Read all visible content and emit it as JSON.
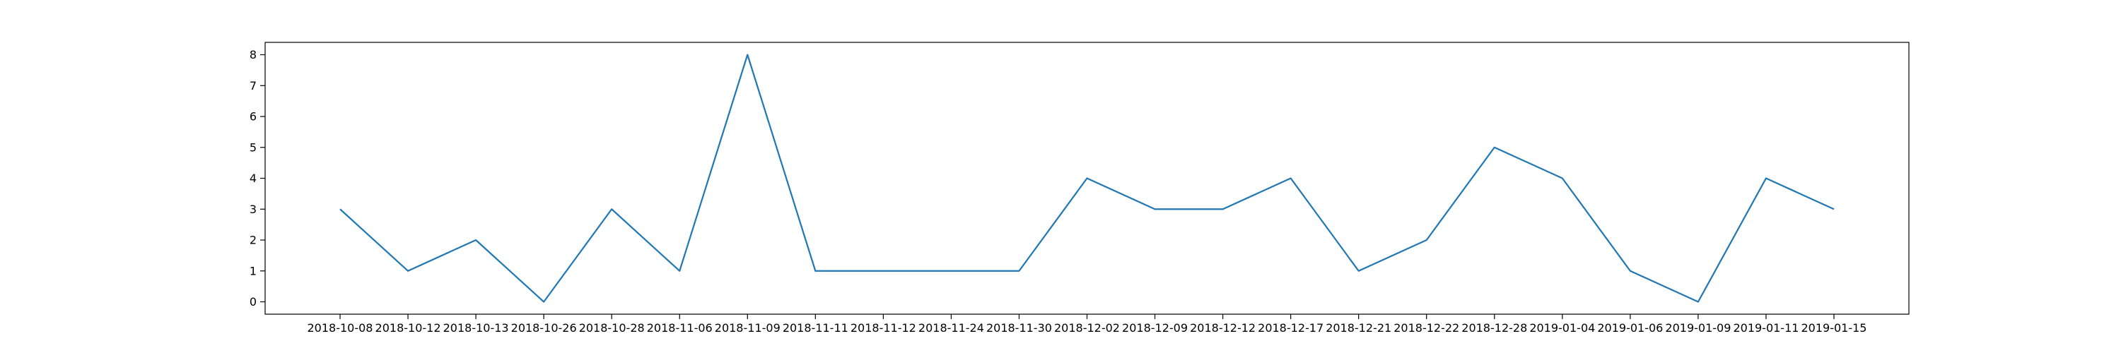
{
  "chart_data": {
    "type": "line",
    "title": "",
    "xlabel": "",
    "ylabel": "",
    "categories": [
      "2018-10-08",
      "2018-10-12",
      "2018-10-13",
      "2018-10-26",
      "2018-10-28",
      "2018-11-06",
      "2018-11-09",
      "2018-11-11",
      "2018-11-12",
      "2018-11-24",
      "2018-11-30",
      "2018-12-02",
      "2018-12-09",
      "2018-12-12",
      "2018-12-17",
      "2018-12-21",
      "2018-12-22",
      "2018-12-28",
      "2019-01-04",
      "2019-01-06",
      "2019-01-09",
      "2019-01-11",
      "2019-01-15"
    ],
    "values": [
      3,
      1,
      2,
      0,
      3,
      1,
      8,
      1,
      1,
      1,
      1,
      4,
      3,
      3,
      4,
      1,
      2,
      5,
      4,
      1,
      0,
      4,
      3
    ],
    "yticks": [
      "0",
      "1",
      "2",
      "3",
      "4",
      "5",
      "6",
      "7",
      "8"
    ],
    "ylim": [
      -0.4,
      8.4
    ],
    "grid": false,
    "line_color": "#1f77b4"
  }
}
